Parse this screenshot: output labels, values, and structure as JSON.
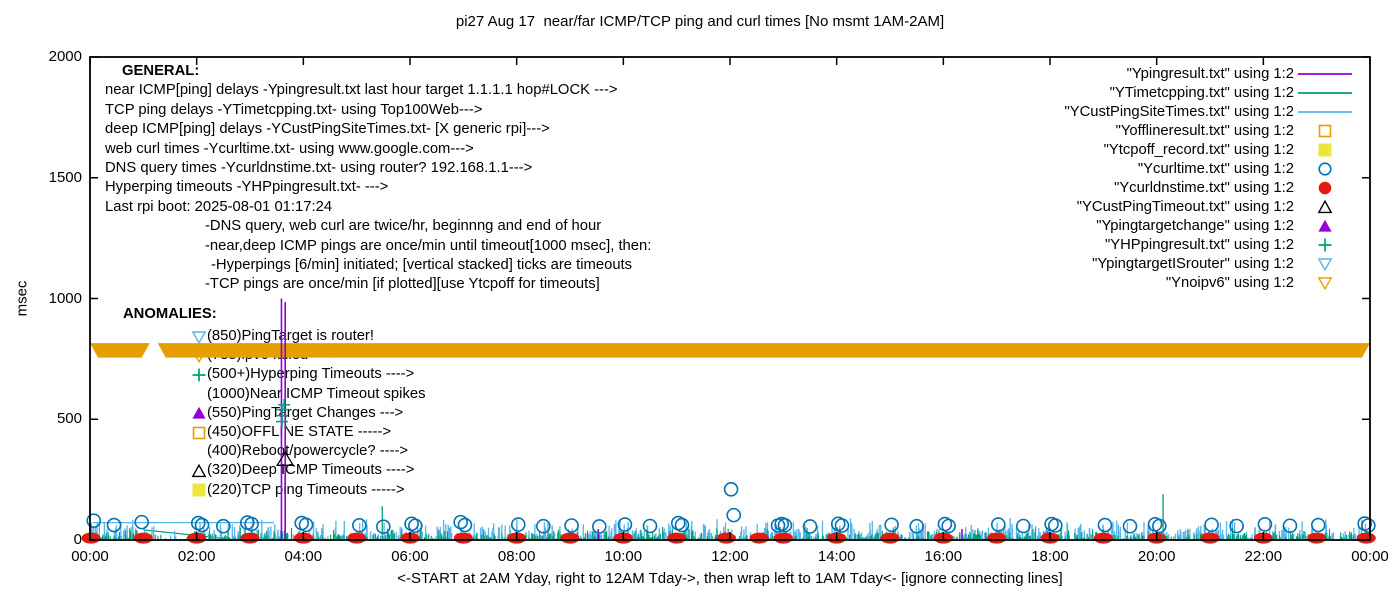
{
  "title": "pi27 Aug 17  near/far ICMP/TCP ping and curl times [No msmt 1AM-2AM]",
  "axes": {
    "ylabel": "msec",
    "xlabel": "<-START at 2AM Yday, right to 12AM Tday->, then wrap left to 1AM Tday<- [ignore connecting lines]",
    "y_ticks": [
      0,
      500,
      1000,
      1500,
      2000
    ],
    "x_tick_hours": [
      0,
      2,
      4,
      6,
      8,
      10,
      12,
      14,
      16,
      18,
      20,
      22,
      24
    ],
    "x_tick_labels": [
      "00:00",
      "02:00",
      "04:00",
      "06:00",
      "08:00",
      "10:00",
      "12:00",
      "14:00",
      "16:00",
      "18:00",
      "20:00",
      "22:00",
      "00:00"
    ]
  },
  "general": {
    "lines": [
      {
        "text": "GENERAL:",
        "indent": 17,
        "bold": true
      },
      {
        "text": "near ICMP[ping] delays -Ypingresult.txt last hour target 1.1.1.1 hop#LOCK --->",
        "indent": 0,
        "bold": false
      },
      {
        "text": "TCP ping delays -YTimetcpping.txt- using Top100Web--->",
        "indent": 0,
        "bold": false
      },
      {
        "text": "deep ICMP[ping] delays -YCustPingSiteTimes.txt- [X generic rpi]--->",
        "indent": 0,
        "bold": false
      },
      {
        "text": "web curl times -Ycurltime.txt- using www.google.com--->",
        "indent": 0,
        "bold": false
      },
      {
        "text": "DNS query times -Ycurldnstime.txt- using router? 192.168.1.1--->",
        "indent": 0,
        "bold": false
      },
      {
        "text": "Hyperping timeouts -YHPpingresult.txt- --->",
        "indent": 0,
        "bold": false
      },
      {
        "text": "Last rpi boot: 2025-08-01 01:17:24",
        "indent": 0,
        "bold": false
      },
      {
        "text": "-DNS query, web curl are twice/hr, beginnng and end of hour",
        "indent": 100,
        "bold": false
      },
      {
        "text": "-near,deep ICMP pings are once/min until timeout[1000 msec], then:",
        "indent": 100,
        "bold": false
      },
      {
        "text": "-Hyperpings [6/min] initiated; [vertical stacked] ticks are timeouts",
        "indent": 106,
        "bold": false
      },
      {
        "text": "-TCP pings are once/min [if plotted][use Ytcpoff for timeouts]",
        "indent": 100,
        "bold": false
      }
    ]
  },
  "anomalies": {
    "heading": "ANOMALIES:",
    "rows": [
      {
        "marker": "triangle-down-open",
        "color": "#56b4e9",
        "text": "(850)PingTarget is router!"
      },
      {
        "marker": "triangle-down-open",
        "color": "#e69f00",
        "text": "(785)ipv6 failed ---->"
      },
      {
        "marker": "plus",
        "color": "#009e73",
        "text": "(500+)Hyperping Timeouts ---->"
      },
      {
        "marker": "none",
        "color": "",
        "text": "(1000)Near ICMP Timeout spikes"
      },
      {
        "marker": "triangle-filled",
        "color": "#9400d3",
        "text": "(550)PingTarget Changes --->"
      },
      {
        "marker": "square-open",
        "color": "#e69f00",
        "text": "(450)OFFLINE STATE ----->"
      },
      {
        "marker": "none",
        "color": "",
        "text": "(400)Reboot/powercycle? ---->"
      },
      {
        "marker": "triangle-open",
        "color": "#000000",
        "text": "(320)Deep ICMP Timeouts ---->"
      },
      {
        "marker": "square-filled",
        "color": "#ede53b",
        "text": "(220)TCP ping Timeouts ----->"
      }
    ]
  },
  "legend": {
    "rows": [
      {
        "label": "\"Ypingresult.txt\" using 1:2",
        "color": "#9400d3",
        "key": "line"
      },
      {
        "label": "\"YTimetcpping.txt\" using 1:2",
        "color": "#009e73",
        "key": "line"
      },
      {
        "label": "\"YCustPingSiteTimes.txt\" using 1:2",
        "color": "#56b4e9",
        "key": "line"
      },
      {
        "label": "\"Yofflineresult.txt\" using 1:2",
        "color": "#e69f00",
        "key": "square-open"
      },
      {
        "label": "\"Ytcpoff_record.txt\" using 1:2",
        "color": "#ede53b",
        "key": "square-filled"
      },
      {
        "label": "\"Ycurltime.txt\" using 1:2",
        "color": "#0072b2",
        "key": "circle-open"
      },
      {
        "label": "\"Ycurldnstime.txt\" using 1:2",
        "color": "#e31a10",
        "key": "circle-filled"
      },
      {
        "label": "\"YCustPingTimeout.txt\" using 1:2",
        "color": "#000000",
        "key": "triangle-open"
      },
      {
        "label": "\"Ypingtargetchange\" using 1:2",
        "color": "#9400d3",
        "key": "triangle-filled"
      },
      {
        "label": "\"YHPpingresult.txt\" using 1:2",
        "color": "#009e73",
        "key": "plus"
      },
      {
        "label": "\"YpingtargetISrouter\" using 1:2",
        "color": "#56b4e9",
        "key": "triangle-down-open"
      },
      {
        "label": "\"Ynoipv6\" using 1:2",
        "color": "#e69f00",
        "key": "triangle-down-open"
      }
    ]
  },
  "chart_data": {
    "type": "scatter",
    "x_range_hours": [
      0,
      24
    ],
    "y_range_msec": [
      0,
      2000
    ],
    "colors": {
      "near_icmp": "#9400d3",
      "tcp_ping": "#009e73",
      "deep_icmp": "#56b4e9",
      "offline": "#e69f00",
      "tcp_timeout": "#ede53b",
      "curl": "#0072b2",
      "dns": "#e31a10",
      "deep_timeout": "#000000",
      "noipv6_band": "#e69f00"
    },
    "noipv6_band": {
      "value": 785,
      "half_msec": 30,
      "segments": [
        [
          0.0,
          1.12
        ],
        [
          1.27,
          24.0
        ]
      ]
    },
    "near_icmp_spikes": [
      [
        3.59,
        1000
      ],
      [
        3.66,
        985
      ],
      [
        9.53,
        45
      ],
      [
        16.35,
        45
      ]
    ],
    "tcp_spikes": [
      [
        5.48,
        140
      ],
      [
        20.12,
        190
      ]
    ],
    "hyperping_timeouts": [
      [
        3.6,
        490
      ],
      [
        3.6,
        515
      ],
      [
        3.6,
        540
      ],
      [
        3.64,
        560
      ]
    ],
    "deep_icmp_timeouts": [
      [
        3.66,
        330
      ]
    ],
    "connector_lines": [
      {
        "color": "#56b4e9",
        "points": [
          [
            0.05,
            72
          ],
          [
            3.45,
            72
          ]
        ]
      },
      {
        "color": "#009e73",
        "points": [
          [
            1.0,
            42
          ],
          [
            2.55,
            6
          ]
        ]
      }
    ],
    "curl_points": [
      [
        0.07,
        80
      ],
      [
        0.45,
        62
      ],
      [
        0.97,
        74
      ],
      [
        2.03,
        70
      ],
      [
        2.1,
        62
      ],
      [
        2.5,
        57
      ],
      [
        2.95,
        72
      ],
      [
        3.03,
        66
      ],
      [
        3.97,
        70
      ],
      [
        4.05,
        63
      ],
      [
        5.05,
        61
      ],
      [
        5.5,
        55
      ],
      [
        6.03,
        67
      ],
      [
        6.1,
        59
      ],
      [
        6.95,
        74
      ],
      [
        7.03,
        62
      ],
      [
        8.03,
        64
      ],
      [
        8.5,
        57
      ],
      [
        9.03,
        60
      ],
      [
        9.55,
        56
      ],
      [
        10.03,
        64
      ],
      [
        10.5,
        58
      ],
      [
        11.03,
        70
      ],
      [
        11.1,
        62
      ],
      [
        12.02,
        210
      ],
      [
        12.07,
        103
      ],
      [
        12.9,
        60
      ],
      [
        12.97,
        66
      ],
      [
        13.03,
        61
      ],
      [
        13.5,
        56
      ],
      [
        14.03,
        67
      ],
      [
        14.1,
        60
      ],
      [
        15.03,
        63
      ],
      [
        15.5,
        57
      ],
      [
        16.03,
        66
      ],
      [
        16.1,
        58
      ],
      [
        17.03,
        64
      ],
      [
        17.5,
        58
      ],
      [
        18.03,
        66
      ],
      [
        18.1,
        60
      ],
      [
        19.03,
        62
      ],
      [
        19.5,
        57
      ],
      [
        19.97,
        65
      ],
      [
        20.05,
        58
      ],
      [
        21.03,
        63
      ],
      [
        21.5,
        58
      ],
      [
        22.03,
        65
      ],
      [
        22.5,
        59
      ],
      [
        23.03,
        62
      ],
      [
        23.9,
        68
      ],
      [
        23.97,
        60
      ]
    ],
    "dns_points": [
      [
        0.02,
        8
      ],
      [
        1.0,
        8
      ],
      [
        2.0,
        8
      ],
      [
        3.0,
        8
      ],
      [
        4.0,
        8
      ],
      [
        5.0,
        8
      ],
      [
        6.0,
        8
      ],
      [
        7.0,
        8
      ],
      [
        8.0,
        8
      ],
      [
        9.0,
        8
      ],
      [
        10.0,
        8
      ],
      [
        11.0,
        8
      ],
      [
        11.93,
        8
      ],
      [
        12.55,
        8
      ],
      [
        13.0,
        8
      ],
      [
        14.0,
        8
      ],
      [
        15.0,
        8
      ],
      [
        16.0,
        8
      ],
      [
        17.0,
        8
      ],
      [
        18.0,
        8
      ],
      [
        19.0,
        8
      ],
      [
        20.0,
        8
      ],
      [
        21.0,
        8
      ],
      [
        22.0,
        8
      ],
      [
        23.0,
        8
      ],
      [
        23.93,
        8
      ]
    ],
    "dense_ticks": {
      "seed": 7,
      "sky": {
        "color": "#56b4e9",
        "count": 1050,
        "vmax": 95
      },
      "green": {
        "color": "#009e73",
        "count": 820,
        "vmax": 55
      },
      "low_density_window": [
        1.03,
        1.95
      ]
    }
  }
}
